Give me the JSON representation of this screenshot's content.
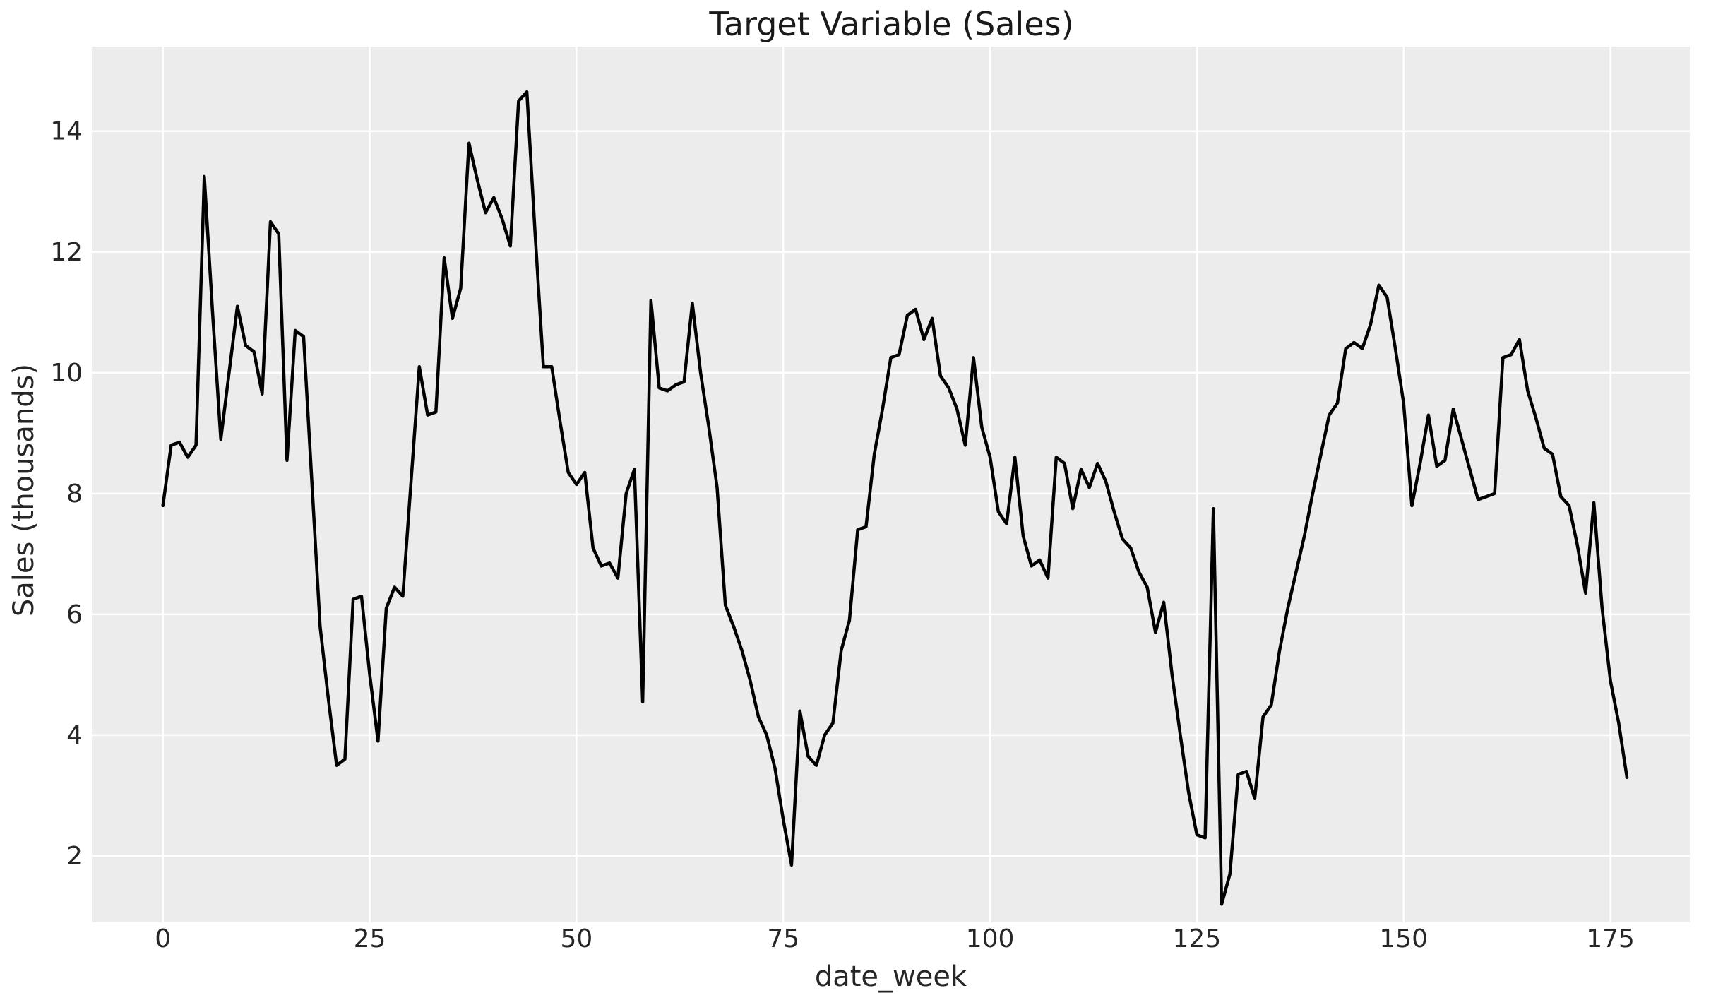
{
  "chart_data": {
    "type": "line",
    "title": "Target Variable (Sales)",
    "xlabel": "date_week",
    "ylabel": "Sales (thousands)",
    "x_ticks": [
      0,
      25,
      50,
      75,
      100,
      125,
      150,
      175
    ],
    "y_ticks": [
      2,
      4,
      6,
      8,
      10,
      12,
      14
    ],
    "x_range": [
      -8.6,
      184.6
    ],
    "y_range": [
      0.9,
      15.4
    ],
    "grid": true,
    "legend": false,
    "style": {
      "line_color": "#000000",
      "line_width": 4.5,
      "plot_bg": "#ECECEC",
      "fig_bg": "#FFFFFF",
      "grid_color": "#FFFFFF",
      "grid_width": 2.5,
      "text_color": "#262626"
    },
    "x_start": 0,
    "x_step": 1,
    "values": [
      7.8,
      8.8,
      8.85,
      8.6,
      8.8,
      13.25,
      11.0,
      8.9,
      10.0,
      11.1,
      10.45,
      10.35,
      9.65,
      12.5,
      12.3,
      8.55,
      10.7,
      10.6,
      8.2,
      5.8,
      4.6,
      3.5,
      3.6,
      6.25,
      6.3,
      5.0,
      3.9,
      6.1,
      6.45,
      6.3,
      8.2,
      10.1,
      9.3,
      9.35,
      11.9,
      10.9,
      11.4,
      13.8,
      13.2,
      12.65,
      12.9,
      12.55,
      12.1,
      14.5,
      14.65,
      12.3,
      10.1,
      10.1,
      9.2,
      8.35,
      8.15,
      8.35,
      7.1,
      6.8,
      6.85,
      6.6,
      8.0,
      8.4,
      4.55,
      11.2,
      9.75,
      9.7,
      9.8,
      9.85,
      11.15,
      10.0,
      9.1,
      8.1,
      6.15,
      5.8,
      5.4,
      4.9,
      4.3,
      4.0,
      3.45,
      2.6,
      1.85,
      4.4,
      3.65,
      3.5,
      4.0,
      4.2,
      5.4,
      5.9,
      7.4,
      7.45,
      8.65,
      9.4,
      10.25,
      10.3,
      10.95,
      11.05,
      10.55,
      10.9,
      9.95,
      9.75,
      9.4,
      8.8,
      10.25,
      9.1,
      8.6,
      7.7,
      7.5,
      8.6,
      7.3,
      6.8,
      6.9,
      6.6,
      8.6,
      8.5,
      7.75,
      8.4,
      8.1,
      8.5,
      8.2,
      7.7,
      7.25,
      7.1,
      6.7,
      6.45,
      5.7,
      6.2,
      5.0,
      4.0,
      3.05,
      2.35,
      2.3,
      7.75,
      1.2,
      1.7,
      3.35,
      3.4,
      2.95,
      4.3,
      4.5,
      5.4,
      6.1,
      6.7,
      7.3,
      8.0,
      8.65,
      9.3,
      9.5,
      10.4,
      10.5,
      10.4,
      10.8,
      11.45,
      11.25,
      10.4,
      9.5,
      7.8,
      8.5,
      9.3,
      8.45,
      8.55,
      9.4,
      8.9,
      8.4,
      7.9,
      7.95,
      8.0,
      10.25,
      10.3,
      10.55,
      9.7,
      9.25,
      8.75,
      8.65,
      7.95,
      7.8,
      7.15,
      6.35,
      7.85,
      6.1,
      4.9,
      4.2,
      3.3
    ]
  }
}
